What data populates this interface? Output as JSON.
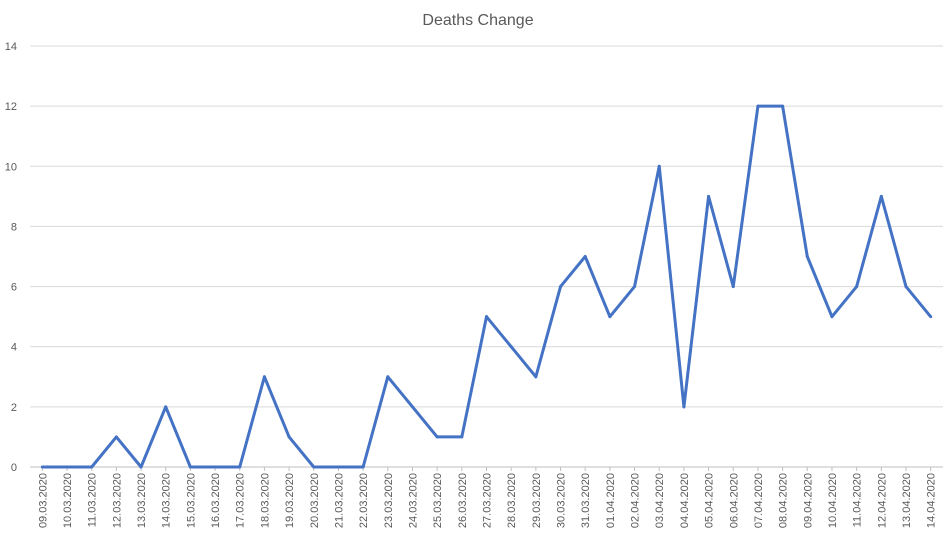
{
  "chart_data": {
    "type": "line",
    "title": "Deaths Change",
    "xlabel": "",
    "ylabel": "",
    "ylim": [
      0,
      14
    ],
    "yticks": [
      0,
      2,
      4,
      6,
      8,
      10,
      12,
      14
    ],
    "grid": true,
    "legend": "none",
    "categories": [
      "09.03.2020",
      "10.03.2020",
      "11.03.2020",
      "12.03.2020",
      "13.03.2020",
      "14.03.2020",
      "15.03.2020",
      "16.03.2020",
      "17.03.2020",
      "18.03.2020",
      "19.03.2020",
      "20.03.2020",
      "21.03.2020",
      "22.03.2020",
      "23.03.2020",
      "24.03.2020",
      "25.03.2020",
      "26.03.2020",
      "27.03.2020",
      "28.03.2020",
      "29.03.2020",
      "30.03.2020",
      "31.03.2020",
      "01.04.2020",
      "02.04.2020",
      "03.04.2020",
      "04.04.2020",
      "05.04.2020",
      "06.04.2020",
      "07.04.2020",
      "08.04.2020",
      "09.04.2020",
      "10.04.2020",
      "11.04.2020",
      "12.04.2020",
      "13.04.2020",
      "14.04.2020"
    ],
    "series": [
      {
        "color": "#4472c4",
        "values": [
          0,
          0,
          0,
          1,
          0,
          2,
          0,
          0,
          0,
          3,
          1,
          0,
          0,
          0,
          3,
          2,
          1,
          1,
          5,
          4,
          3,
          6,
          7,
          5,
          6,
          10,
          2,
          9,
          6,
          12,
          12,
          7,
          5,
          6,
          9,
          6,
          5
        ]
      }
    ]
  }
}
